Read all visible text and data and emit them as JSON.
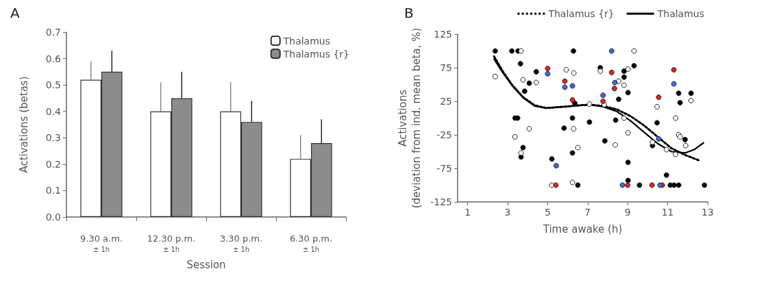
{
  "chart_data": [
    {
      "type": "bar",
      "title": "A",
      "xlabel": "Session",
      "ylabel": "Activations (betas)",
      "categories": [
        "9.30 a.m.\n± 1h",
        "12.30 p.m.\n± 1h",
        "3.30 p.m.\n± 1h",
        "6.30 p.m.\n± 1h"
      ],
      "series": [
        {
          "name": "Thalamus",
          "color": "#ffffff",
          "values": [
            0.52,
            0.4,
            0.4,
            0.22
          ],
          "errors": [
            [
              0.52,
              0.59
            ],
            [
              0.4,
              0.51
            ],
            [
              0.4,
              0.51
            ],
            [
              0.22,
              0.31
            ]
          ]
        },
        {
          "name": "Thalamus {r}",
          "color": "#8c8c8c",
          "values": [
            0.55,
            0.45,
            0.36,
            0.28
          ],
          "errors": [
            [
              0.55,
              0.63
            ],
            [
              0.45,
              0.55
            ],
            [
              0.36,
              0.44
            ],
            [
              0.28,
              0.37
            ]
          ]
        }
      ],
      "ylim": [
        0,
        0.7
      ],
      "yticks": [
        {
          "value": 0,
          "label": "0.0"
        },
        0.1,
        0.2,
        0.3,
        0.4,
        0.5,
        0.6,
        0.7
      ],
      "legend": "top right"
    },
    {
      "type": "scatter",
      "title": "B",
      "xlabel": "Time awake (h)",
      "ylabel": "Activations\n(deviation from ind. mean beta, %)",
      "xlim": [
        0.5,
        13
      ],
      "xticks": [
        1,
        3,
        5,
        7,
        9,
        11,
        13
      ],
      "ylim": [
        -125,
        125
      ],
      "yticks": [
        -125,
        -75,
        -25,
        25,
        75,
        125
      ],
      "legend": "top right",
      "marker": "circle",
      "series": [
        {
          "color": "#000000",
          "x": [
            2.38,
            3.21,
            3.52,
            3.64,
            4.43,
            4.08,
            3.85,
            6.29,
            3.37,
            3.5,
            5.82,
            6.24,
            3.77,
            3.67,
            6.24,
            5.21,
            6.51,
            6.36,
            7.09,
            7.63,
            8.82,
            9.32,
            8.82,
            9.02,
            8.55,
            8.4,
            7.86,
            9.02,
            9.02,
            9.59,
            11.13,
            11.32,
            11.55,
            12.84,
            10.94,
            11.55,
            12.17,
            11.62,
            10.47,
            10.24,
            11.87
          ],
          "values": [
            100,
            100,
            100,
            81,
            69,
            52,
            40,
            100,
            0,
            0,
            -15,
            0,
            -44,
            -58,
            -52,
            -61,
            -100,
            22,
            -6,
            75,
            70,
            78,
            61,
            38,
            28,
            -3,
            -34,
            -66,
            -93,
            -100,
            -100,
            -100,
            -100,
            -100,
            -85,
            37,
            37,
            23,
            -7,
            -41,
            -32
          ]
        },
        {
          "color": "#ffffff",
          "x": [
            2.38,
            3.67,
            3.77,
            4.43,
            5.93,
            6.31,
            4.08,
            6.3,
            3.37,
            3.67,
            6.51,
            5.21,
            6.24,
            7.09,
            7.63,
            9.32,
            9.02,
            8.55,
            8.82,
            7.83,
            8.82,
            9.02,
            8.38,
            10.47,
            12.17,
            11.4,
            10.24,
            10.94,
            11.39,
            11.55,
            11.62,
            11.9
          ],
          "values": [
            62,
            100,
            57,
            53,
            72,
            67,
            -16,
            -16,
            -28,
            -52,
            -44,
            -100,
            -96,
            21,
            70,
            100,
            73,
            55,
            49,
            20,
            0,
            -22,
            -40,
            17,
            26,
            0,
            -36,
            -47,
            -54,
            -25,
            -28,
            -41
          ]
        },
        {
          "color": "#e2231a",
          "x": [
            5.0,
            5.86,
            6.24,
            5.41,
            8.2,
            8.34,
            7.77,
            9.0,
            10.22,
            10.73,
            10.55,
            11.31
          ],
          "values": [
            74,
            55,
            27,
            -100,
            68,
            44,
            25,
            -100,
            -100,
            -100,
            31,
            72
          ]
        },
        {
          "color": "#3b6fd4",
          "x": [
            5.0,
            5.86,
            6.24,
            5.43,
            8.2,
            8.36,
            7.77,
            8.74,
            10.62,
            10.55,
            11.31
          ],
          "values": [
            66,
            46,
            48,
            -71,
            100,
            53,
            34,
            -100,
            -100,
            -31,
            51
          ]
        },
        {
          "name": "Thalamus {r}",
          "type": "line",
          "line_style": "dotted",
          "marker": "none",
          "color": "#000000",
          "x": [
            2.32,
            2.75,
            3.21,
            3.78,
            4.35,
            4.92,
            5.86,
            6.63,
            7.09,
            7.77,
            8.45,
            9.14,
            9.82,
            10.5,
            11.19,
            11.87,
            12.56
          ],
          "values": [
            92,
            70,
            50,
            31,
            19,
            15,
            17,
            19,
            20,
            18,
            13,
            3,
            -11,
            -28,
            -45,
            -55,
            -63
          ]
        },
        {
          "name": "Thalamus",
          "type": "line",
          "line_style": "solid",
          "marker": "none",
          "color": "#000000",
          "x": [
            2.32,
            2.75,
            3.21,
            3.78,
            4.35,
            4.92,
            5.86,
            6.63,
            7.09,
            7.77,
            8.45,
            9.14,
            9.82,
            10.5,
            11.19,
            11.87,
            12.33,
            12.79
          ],
          "values": [
            88,
            68,
            49,
            30,
            18,
            15,
            17,
            19,
            20,
            17,
            10,
            -4,
            -21,
            -38,
            -50,
            -52,
            -47,
            -37
          ]
        }
      ]
    }
  ]
}
